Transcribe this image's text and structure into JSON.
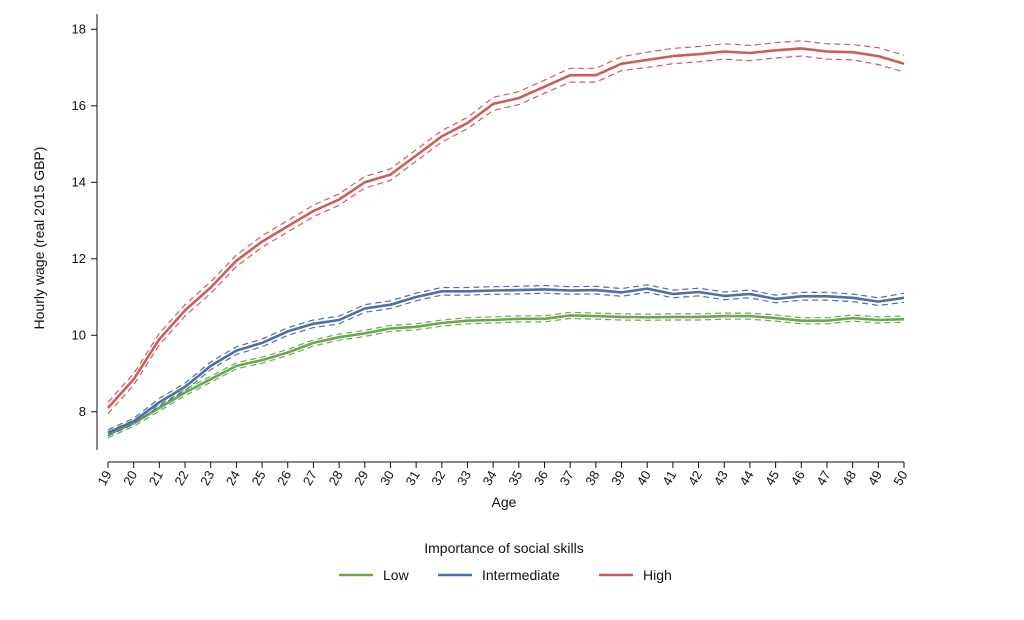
{
  "chart_data": {
    "type": "line",
    "xlabel": "Age",
    "ylabel": "Hourly wage (real 2015 GBP)",
    "xlim": [
      19,
      50
    ],
    "ylim": [
      7,
      18.4
    ],
    "yticks": [
      8,
      10,
      12,
      14,
      16,
      18
    ],
    "x": [
      19,
      20,
      21,
      22,
      23,
      24,
      25,
      26,
      27,
      28,
      29,
      30,
      31,
      32,
      33,
      34,
      35,
      36,
      37,
      38,
      39,
      40,
      41,
      42,
      43,
      44,
      45,
      46,
      47,
      48,
      49,
      50
    ],
    "legend_title": "Importance of social skills",
    "legend_position": "bottom-center",
    "grid": false,
    "series": [
      {
        "name": "Low",
        "color": "#6aa84f",
        "values": [
          7.4,
          7.7,
          8.1,
          8.5,
          8.85,
          9.2,
          9.35,
          9.55,
          9.8,
          9.95,
          10.05,
          10.18,
          10.22,
          10.32,
          10.38,
          10.4,
          10.43,
          10.43,
          10.52,
          10.5,
          10.48,
          10.47,
          10.48,
          10.48,
          10.5,
          10.5,
          10.45,
          10.38,
          10.38,
          10.45,
          10.4,
          10.42
        ],
        "lower": [
          7.32,
          7.62,
          8.02,
          8.42,
          8.77,
          9.12,
          9.27,
          9.47,
          9.72,
          9.87,
          9.97,
          10.1,
          10.14,
          10.24,
          10.3,
          10.32,
          10.35,
          10.35,
          10.44,
          10.42,
          10.4,
          10.39,
          10.4,
          10.4,
          10.42,
          10.42,
          10.37,
          10.3,
          10.3,
          10.37,
          10.32,
          10.34
        ],
        "upper": [
          7.48,
          7.78,
          8.18,
          8.58,
          8.93,
          9.28,
          9.43,
          9.63,
          9.88,
          10.03,
          10.13,
          10.26,
          10.3,
          10.4,
          10.46,
          10.48,
          10.51,
          10.51,
          10.6,
          10.58,
          10.56,
          10.55,
          10.56,
          10.56,
          10.58,
          10.58,
          10.53,
          10.46,
          10.46,
          10.53,
          10.48,
          10.5
        ]
      },
      {
        "name": "Intermediate",
        "color": "#4e6fa6",
        "values": [
          7.45,
          7.75,
          8.25,
          8.65,
          9.2,
          9.6,
          9.8,
          10.1,
          10.3,
          10.4,
          10.7,
          10.8,
          11.0,
          11.15,
          11.15,
          11.17,
          11.18,
          11.2,
          11.17,
          11.18,
          11.12,
          11.22,
          11.08,
          11.13,
          11.03,
          11.08,
          10.95,
          11.02,
          11.02,
          10.98,
          10.88,
          10.98
        ],
        "lower": [
          7.37,
          7.67,
          8.15,
          8.55,
          9.1,
          9.5,
          9.7,
          10.0,
          10.2,
          10.3,
          10.6,
          10.7,
          10.9,
          11.05,
          11.05,
          11.07,
          11.08,
          11.1,
          11.07,
          11.08,
          11.02,
          11.12,
          10.98,
          11.03,
          10.93,
          10.98,
          10.85,
          10.92,
          10.92,
          10.88,
          10.78,
          10.86
        ],
        "upper": [
          7.53,
          7.83,
          8.35,
          8.75,
          9.3,
          9.7,
          9.9,
          10.2,
          10.4,
          10.5,
          10.8,
          10.9,
          11.1,
          11.25,
          11.25,
          11.27,
          11.28,
          11.3,
          11.27,
          11.28,
          11.22,
          11.32,
          11.18,
          11.23,
          11.13,
          11.18,
          11.05,
          11.12,
          11.12,
          11.08,
          10.98,
          11.1
        ]
      },
      {
        "name": "High",
        "color": "#cd5c5c",
        "values": [
          8.1,
          8.85,
          9.9,
          10.65,
          11.25,
          11.95,
          12.45,
          12.85,
          13.25,
          13.55,
          14.0,
          14.2,
          14.7,
          15.2,
          15.55,
          16.05,
          16.2,
          16.5,
          16.8,
          16.8,
          17.1,
          17.2,
          17.3,
          17.35,
          17.42,
          17.38,
          17.45,
          17.5,
          17.42,
          17.4,
          17.3,
          17.1
        ],
        "lower": [
          7.95,
          8.7,
          9.75,
          10.5,
          11.1,
          11.8,
          12.3,
          12.7,
          13.1,
          13.4,
          13.85,
          14.05,
          14.55,
          15.05,
          15.4,
          15.88,
          16.03,
          16.33,
          16.62,
          16.62,
          16.92,
          17.0,
          17.1,
          17.15,
          17.22,
          17.18,
          17.25,
          17.3,
          17.22,
          17.2,
          17.08,
          16.88
        ],
        "upper": [
          8.25,
          9.0,
          10.05,
          10.8,
          11.4,
          12.1,
          12.6,
          13.0,
          13.4,
          13.7,
          14.15,
          14.35,
          14.85,
          15.35,
          15.7,
          16.22,
          16.37,
          16.67,
          16.98,
          16.98,
          17.28,
          17.4,
          17.5,
          17.55,
          17.62,
          17.58,
          17.65,
          17.7,
          17.62,
          17.6,
          17.52,
          17.32
        ]
      }
    ]
  }
}
